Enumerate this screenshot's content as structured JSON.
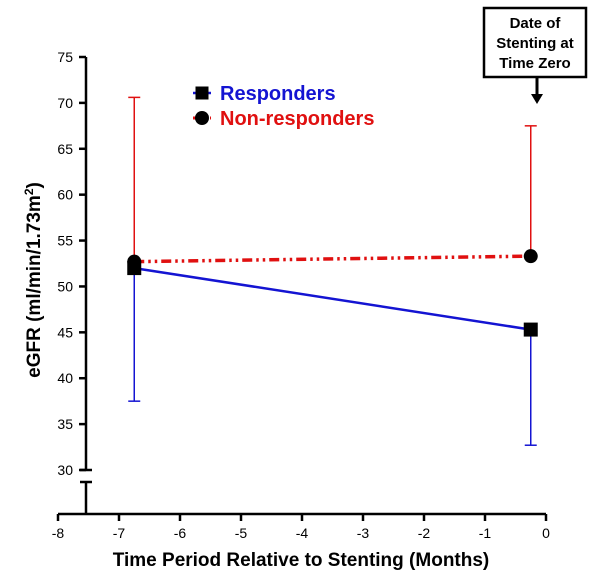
{
  "chart_data": {
    "type": "line",
    "title": "",
    "xlabel": "Time Period Relative to Stenting (Months)",
    "ylabel_main": "eGFR (ml/min/1.73m",
    "ylabel_sup": "2",
    "ylabel_close": ")",
    "xlim": [
      -8,
      0
    ],
    "ylim": [
      30,
      75
    ],
    "xticks": [
      -8,
      -7,
      -6,
      -5,
      -4,
      -3,
      -2,
      -1,
      0
    ],
    "yticks": [
      30,
      35,
      40,
      45,
      50,
      55,
      60,
      65,
      70,
      75
    ],
    "y_axis_break": true,
    "series": [
      {
        "name": "Responders",
        "color": "#1414d2",
        "line_style": "solid",
        "marker": "square",
        "x": [
          -6.75,
          -0.25
        ],
        "y": [
          52.0,
          45.3
        ],
        "error_upper": [
          null,
          null
        ],
        "error_lower": [
          37.5,
          32.7
        ]
      },
      {
        "name": "Non-responders",
        "color": "#e01010",
        "line_style": "dash-dot-dot",
        "marker": "circle",
        "x": [
          -6.75,
          -0.25
        ],
        "y": [
          52.7,
          53.3
        ],
        "error_upper": [
          70.6,
          67.5
        ],
        "error_lower": [
          null,
          null
        ]
      }
    ],
    "legend": [
      "Responders",
      "Non-responders"
    ],
    "legend_position": "top-left",
    "annotation": {
      "lines": [
        "Date of",
        "Stenting at",
        "Time Zero"
      ],
      "arrow_target_x": -0.25
    }
  }
}
